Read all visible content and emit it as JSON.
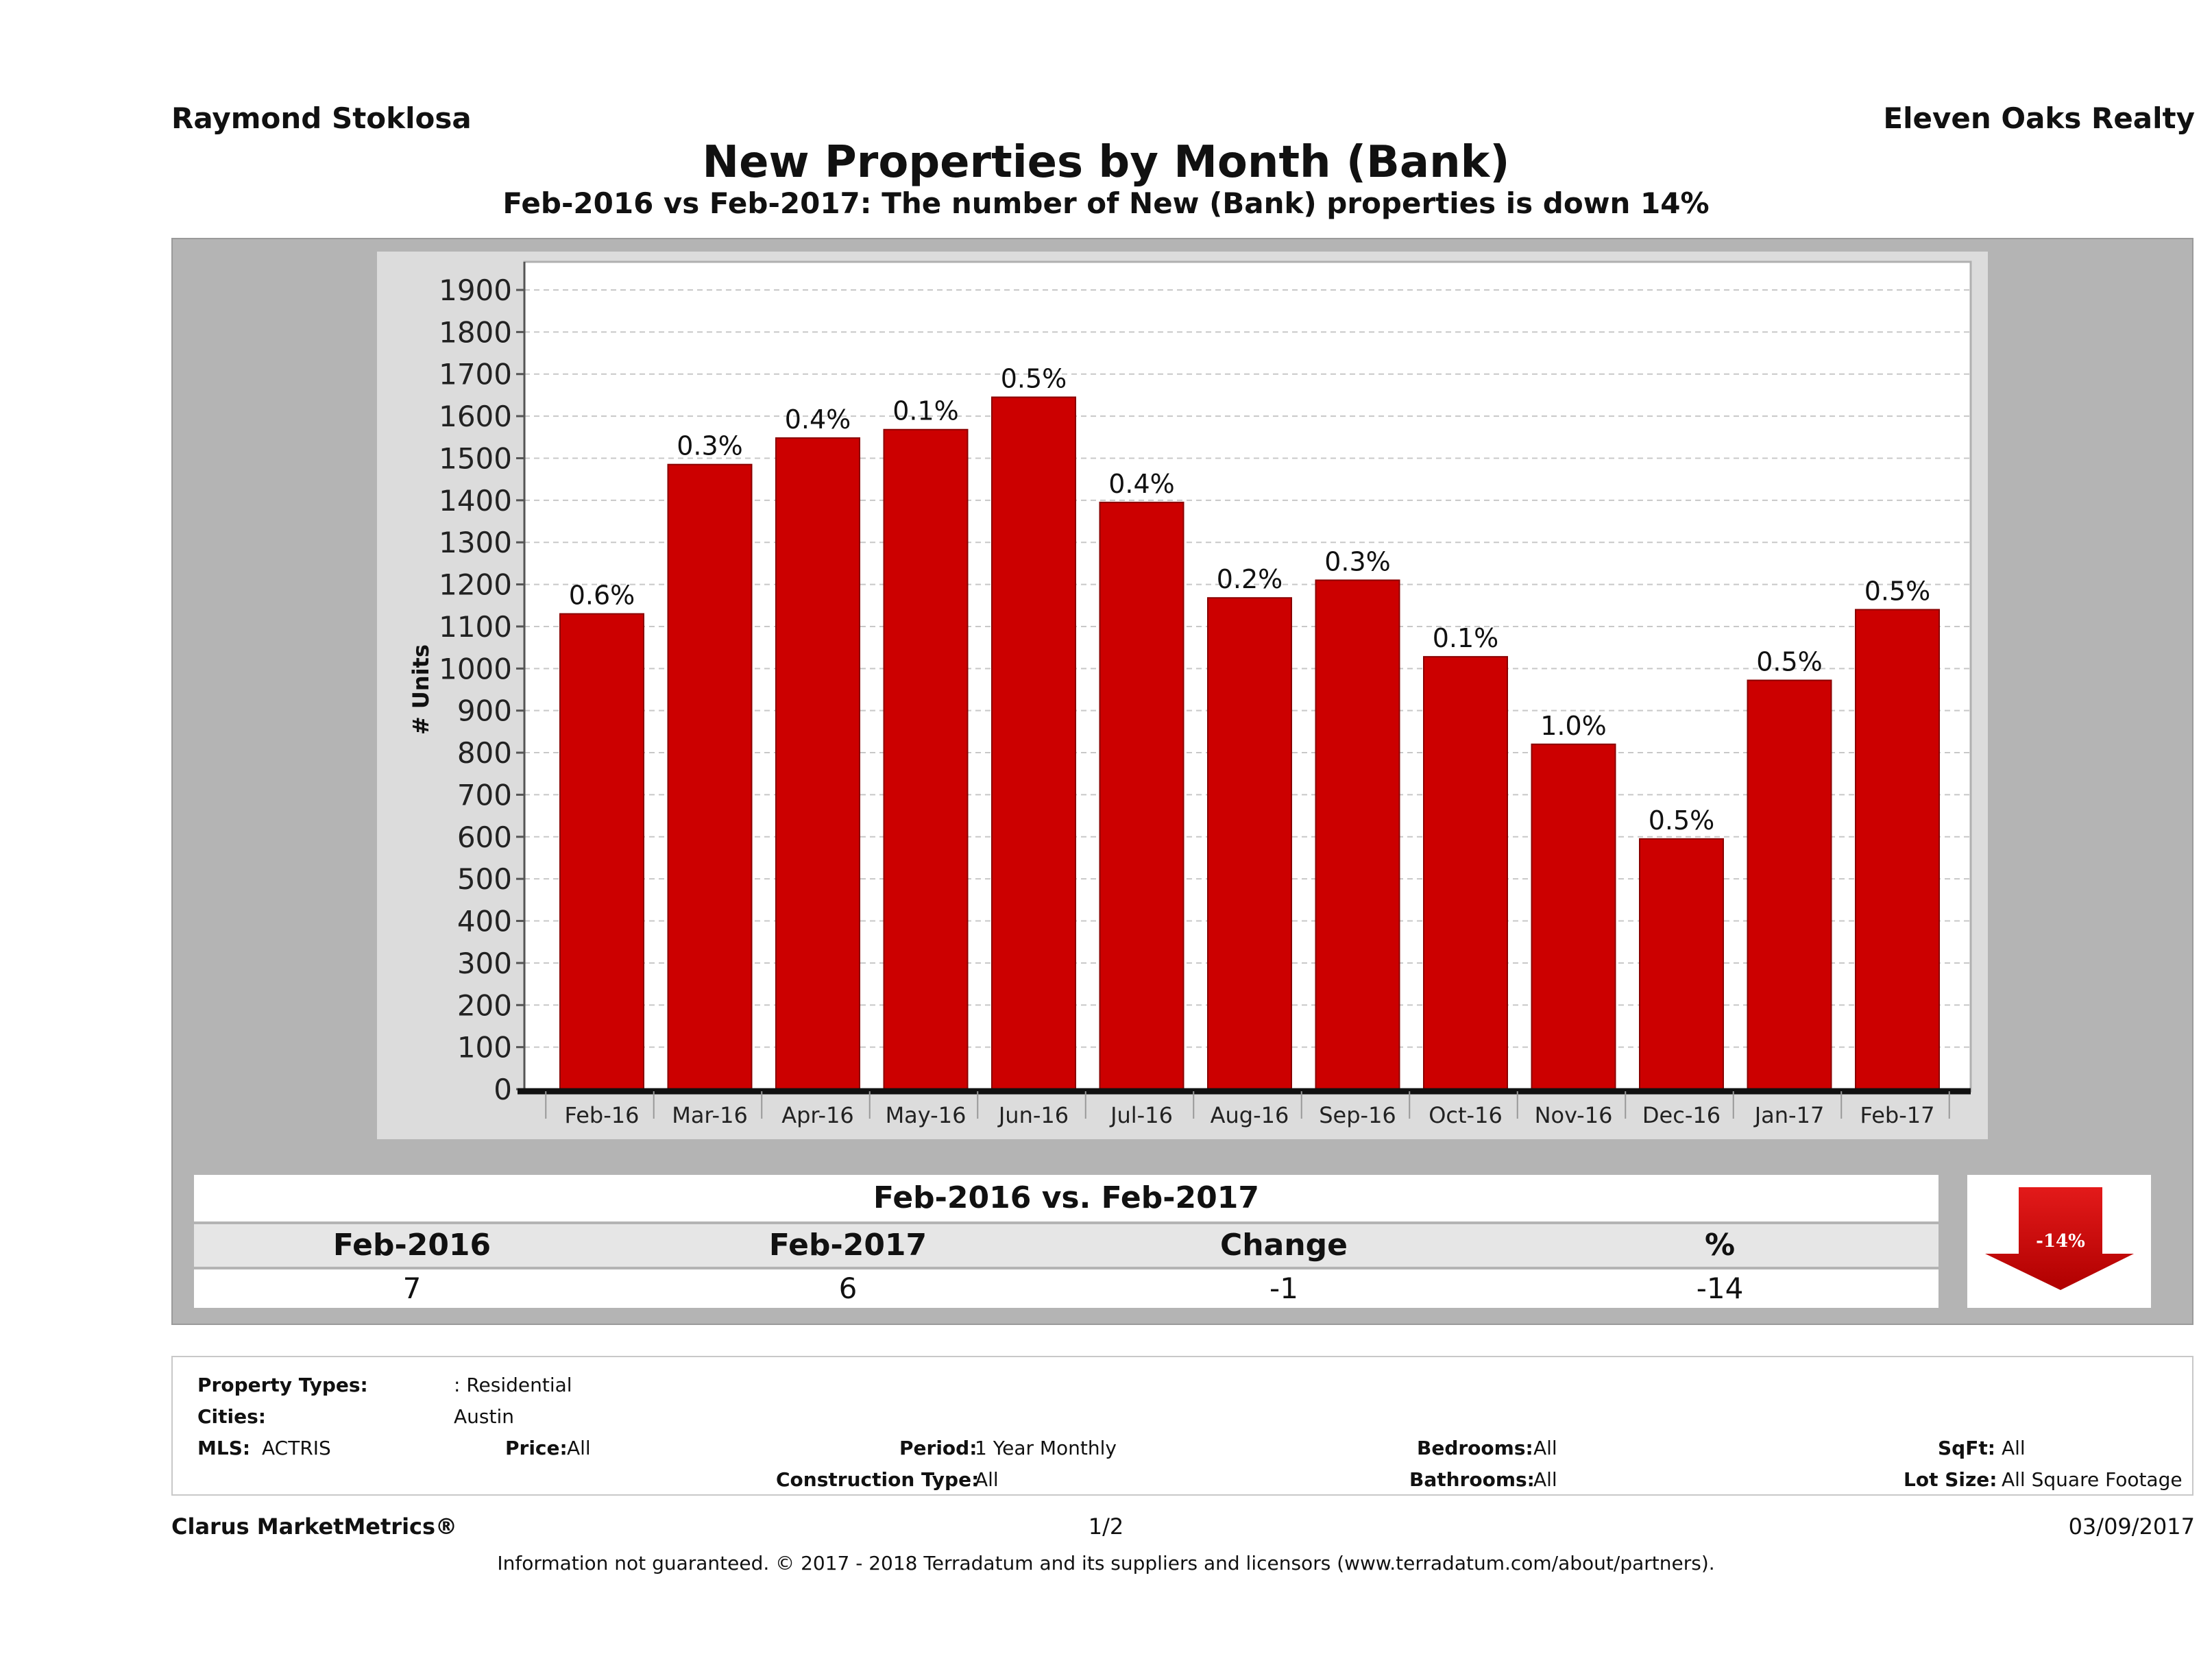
{
  "header": {
    "agent_name": "Raymond Stoklosa",
    "brokerage": "Eleven Oaks Realty"
  },
  "chart_data": {
    "type": "bar",
    "title": "New Properties by Month (Bank)",
    "subtitle": "Feb-2016 vs Feb-2017: The number of New (Bank)  properties is down 14%",
    "ylabel": "# Units",
    "xlabel": "",
    "ylim": [
      0,
      1900
    ],
    "yticks": [
      0,
      100,
      200,
      300,
      400,
      500,
      600,
      700,
      800,
      900,
      1000,
      1100,
      1200,
      1300,
      1400,
      1500,
      1600,
      1700,
      1800,
      1900
    ],
    "grid": true,
    "bar_color": "#cc0000",
    "categories": [
      "Feb-16",
      "Mar-16",
      "Apr-16",
      "May-16",
      "Jun-16",
      "Jul-16",
      "Aug-16",
      "Sep-16",
      "Oct-16",
      "Nov-16",
      "Dec-16",
      "Jan-17",
      "Feb-17"
    ],
    "values": [
      1130,
      1485,
      1548,
      1568,
      1645,
      1395,
      1168,
      1210,
      1028,
      820,
      595,
      972,
      1140
    ],
    "data_labels": [
      "0.6%",
      "0.3%",
      "0.4%",
      "0.1%",
      "0.5%",
      "0.4%",
      "0.2%",
      "0.3%",
      "0.1%",
      "1.0%",
      "0.5%",
      "0.5%",
      "0.5%"
    ]
  },
  "summary": {
    "title": "Feb-2016 vs. Feb-2017",
    "headers": [
      "Feb-2016",
      "Feb-2017",
      "Change",
      "%"
    ],
    "values": [
      "7",
      "6",
      "-1",
      "-14"
    ],
    "arrow_label": "-14%",
    "arrow_color": "#cc0000"
  },
  "filters": {
    "property_types_label": "Property Types:",
    "property_types_value": ": Residential",
    "cities_label": "Cities:",
    "cities_value": "Austin",
    "mls_label": "MLS:",
    "mls_value": "ACTRIS",
    "price_label": "Price:",
    "price_value": "All",
    "period_label": "Period:",
    "period_value": "1 Year Monthly",
    "construction_label": "Construction Type:",
    "construction_value": "All",
    "bedrooms_label": "Bedrooms:",
    "bedrooms_value": "All",
    "bathrooms_label": "Bathrooms:",
    "bathrooms_value": "All",
    "sqft_label": "SqFt:",
    "sqft_value": "All",
    "lot_label": "Lot Size:",
    "lot_value": "All Square Footage"
  },
  "footer": {
    "brand": "Clarus MarketMetrics®",
    "page": "1/2",
    "date": "03/09/2017",
    "disclaimer": "Information not guaranteed. © 2017 - 2018 Terradatum and its suppliers and licensors (www.terradatum.com/about/partners)."
  }
}
